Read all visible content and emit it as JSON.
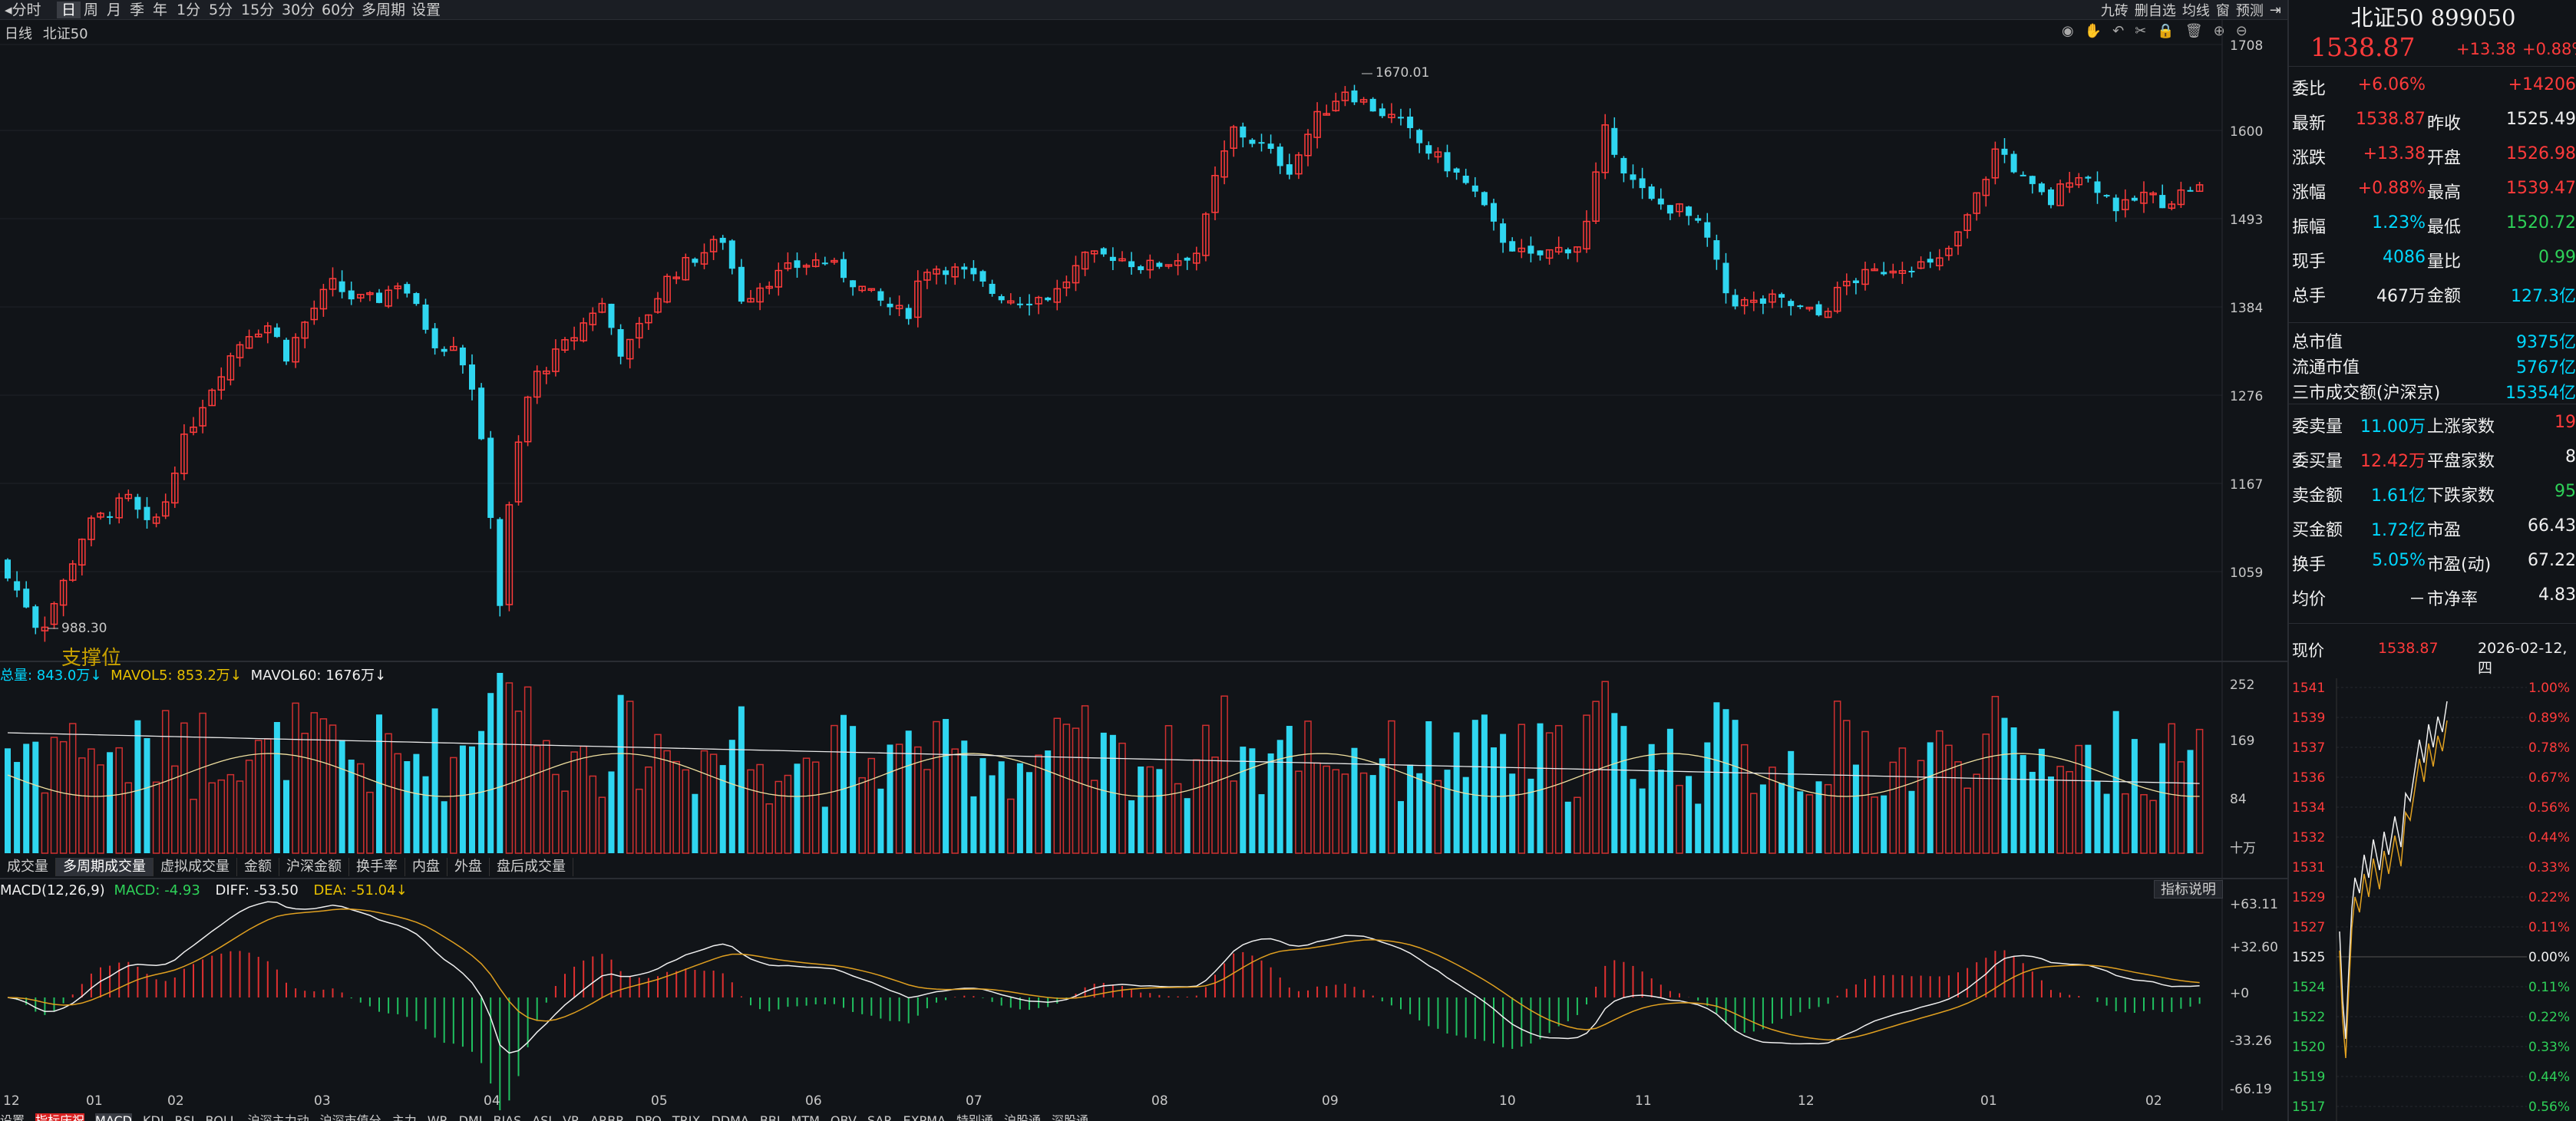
{
  "toolbar": {
    "periods": [
      "分时",
      "日",
      "周",
      "月",
      "季",
      "年",
      "1分",
      "5分",
      "15分",
      "30分",
      "60分",
      "多周期",
      "设置"
    ],
    "active": "日",
    "right_tools": [
      "九砖",
      "删自选",
      "均线",
      "窗",
      "预测"
    ]
  },
  "chart": {
    "period_label": "日线",
    "symbol_label": "北证50",
    "price_axis": [
      "1708",
      "1600",
      "1493",
      "1384",
      "1276",
      "1167",
      "1059"
    ],
    "high_annotation": "1670.01",
    "low_annotation": "988.30",
    "watermark_text": "支撑位"
  },
  "volume": {
    "legend_total": "总量: 843.0万↓",
    "legend_ma5": "MAVOL5: 853.2万↓",
    "legend_ma60": "MAVOL60: 1676万↓",
    "axis": [
      "252",
      "169",
      "84",
      "十万"
    ],
    "tabs": [
      "成交量",
      "多周期成交量",
      "虚拟成交量",
      "金额",
      "沪深金额",
      "换手率",
      "内盘",
      "外盘",
      "盘后成交量"
    ],
    "selected_tab": "多周期成交量"
  },
  "macd": {
    "legend_name": "MACD(12,26,9)",
    "legend_macd": "MACD: -4.93",
    "legend_diff": "DIFF: -53.50",
    "legend_dea": "DEA: -51.04↓",
    "help_label": "指标说明",
    "axis": [
      "+63.11",
      "+32.60",
      "+0",
      "-33.26",
      "-66.19"
    ],
    "months": [
      "12",
      "01",
      "02",
      "03",
      "04",
      "05",
      "06",
      "07",
      "08",
      "09",
      "10",
      "11",
      "12",
      "01",
      "02"
    ]
  },
  "bottom_tabs": [
    "设置",
    "指标庆祝",
    "MACD",
    "KDJ",
    "RSI",
    "BOLL",
    "沪深主力动",
    "沪深市值分",
    "主力",
    "WR",
    "DMI",
    "BIAS",
    "ASI",
    "VR",
    "ARBR",
    "DPO",
    "TRIX",
    "DDMA",
    "BBI",
    "MTM",
    "OBV",
    "SAR",
    "EXPMA",
    "特别通",
    "沪股通",
    "深股通"
  ],
  "quote": {
    "name": "北证50 899050",
    "price": "1538.87",
    "change": "+13.38",
    "pct": "+0.88%",
    "rows": [
      {
        "l1": "委比",
        "v1": "+6.06%",
        "c1": "red",
        "l2": "",
        "v2": "+14206",
        "c2": "red"
      },
      {
        "l1": "最新",
        "v1": "1538.87",
        "c1": "red",
        "l2": "昨收",
        "v2": "1525.49",
        "c2": "white"
      },
      {
        "l1": "涨跌",
        "v1": "+13.38",
        "c1": "red",
        "l2": "开盘",
        "v2": "1526.98",
        "c2": "red"
      },
      {
        "l1": "涨幅",
        "v1": "+0.88%",
        "c1": "red",
        "l2": "最高",
        "v2": "1539.47",
        "c2": "red"
      },
      {
        "l1": "振幅",
        "v1": "1.23%",
        "c1": "cyan",
        "l2": "最低",
        "v2": "1520.72",
        "c2": "green"
      },
      {
        "l1": "现手",
        "v1": "4086",
        "c1": "cyan",
        "l2": "量比",
        "v2": "0.99",
        "c2": "green"
      },
      {
        "l1": "总手",
        "v1": "467万",
        "c1": "white",
        "l2": "金额",
        "v2": "127.3亿",
        "c2": "cyan"
      }
    ],
    "mcap": [
      {
        "label": "总市值",
        "value": "9375亿"
      },
      {
        "label": "流通市值",
        "value": "5767亿"
      },
      {
        "label": "三市成交额(沪深京)",
        "value": "15354亿"
      }
    ],
    "rows2": [
      {
        "l1": "委卖量",
        "v1": "11.00万",
        "c1": "cyan",
        "l2": "上涨家数",
        "v2": "19",
        "c2": "red"
      },
      {
        "l1": "委买量",
        "v1": "12.42万",
        "c1": "red",
        "l2": "平盘家数",
        "v2": "8",
        "c2": "white"
      },
      {
        "l1": "卖金额",
        "v1": "1.61亿",
        "c1": "cyan",
        "l2": "下跌家数",
        "v2": "95",
        "c2": "green"
      },
      {
        "l1": "买金额",
        "v1": "1.72亿",
        "c1": "cyan",
        "l2": "市盈",
        "v2": "66.43",
        "c2": "white"
      },
      {
        "l1": "换手",
        "v1": "5.05%",
        "c1": "cyan",
        "l2": "市盈(动)",
        "v2": "67.22",
        "c2": "white"
      },
      {
        "l1": "均价",
        "v1": "－",
        "c1": "white",
        "l2": "市净率",
        "v2": "4.83",
        "c2": "white"
      }
    ],
    "now_label": "现价",
    "now_price": "1538.87",
    "date": "2026-02-12,四"
  },
  "intraday": {
    "left_axis": [
      "1541",
      "1539",
      "1537",
      "1536",
      "1534",
      "1532",
      "1531",
      "1529",
      "1527",
      "1525",
      "1524",
      "1522",
      "1520",
      "1519",
      "1517"
    ],
    "right_axis": [
      "1.00%",
      "0.89%",
      "0.78%",
      "0.67%",
      "0.56%",
      "0.44%",
      "0.33%",
      "0.22%",
      "0.11%",
      "0.00%",
      "0.11%",
      "0.22%",
      "0.33%",
      "0.44%",
      "0.56%"
    ]
  }
}
